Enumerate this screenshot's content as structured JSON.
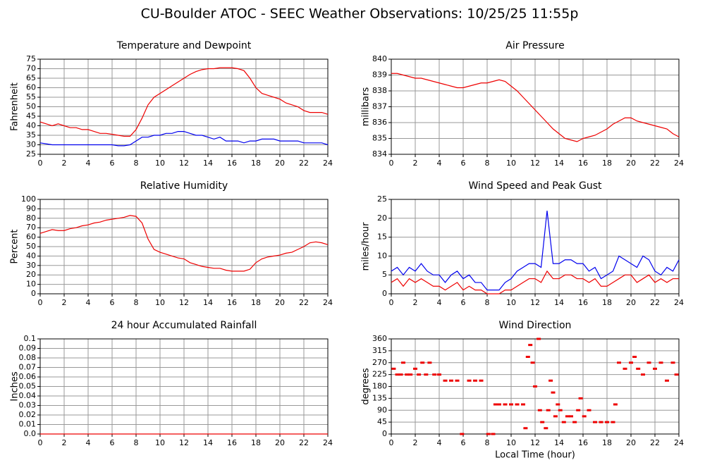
{
  "title": "CU-Boulder ATOC - SEEC Weather Observations: 10/25/25 11:55p",
  "chart_data": [
    {
      "type": "line",
      "title": "Temperature and Dewpoint",
      "ylabel": "Fahrenheit",
      "x": [
        0,
        0.5,
        1,
        1.5,
        2,
        2.5,
        3,
        3.5,
        4,
        4.5,
        5,
        5.5,
        6,
        6.5,
        7,
        7.5,
        8,
        8.5,
        9,
        9.5,
        10,
        10.5,
        11,
        11.5,
        12,
        12.5,
        13,
        13.5,
        14,
        14.5,
        15,
        15.5,
        16,
        16.5,
        17,
        17.5,
        18,
        18.5,
        19,
        19.5,
        20,
        20.5,
        21,
        21.5,
        22,
        22.5,
        23,
        23.5,
        24
      ],
      "series": [
        {
          "color": "#ee0000",
          "values": [
            42,
            41,
            40,
            41,
            40,
            39,
            39,
            38,
            38,
            37,
            36,
            36,
            35.5,
            35,
            34.5,
            34.5,
            38,
            44,
            51,
            55,
            57,
            59,
            61,
            63,
            65,
            67,
            68.5,
            69.5,
            70,
            70,
            70.5,
            70.5,
            70.5,
            70,
            69,
            65,
            60,
            57,
            56,
            55,
            54,
            52,
            51,
            50,
            48,
            47,
            47,
            47,
            46
          ]
        },
        {
          "color": "#0000ee",
          "values": [
            31,
            30.5,
            30,
            30,
            30,
            30,
            30,
            30,
            30,
            30,
            30,
            30,
            30,
            29.5,
            29.5,
            30,
            32,
            34,
            34,
            35,
            35,
            36,
            36,
            37,
            37,
            36,
            35,
            35,
            34,
            33,
            34,
            32,
            32,
            32,
            31,
            32,
            32,
            33,
            33,
            33,
            32,
            32,
            32,
            32,
            31,
            31,
            31,
            31,
            30
          ]
        }
      ],
      "xlim": [
        0,
        24
      ],
      "ylim": [
        25,
        75
      ],
      "xticks": [
        0,
        2,
        4,
        6,
        8,
        10,
        12,
        14,
        16,
        18,
        20,
        22,
        24
      ],
      "yticks": [
        25,
        30,
        35,
        40,
        45,
        50,
        55,
        60,
        65,
        70,
        75
      ],
      "grid": true
    },
    {
      "type": "line",
      "title": "Air Pressure",
      "ylabel": "millibars",
      "x": [
        0,
        0.5,
        1,
        1.5,
        2,
        2.5,
        3,
        3.5,
        4,
        4.5,
        5,
        5.5,
        6,
        6.5,
        7,
        7.5,
        8,
        8.5,
        9,
        9.5,
        10,
        10.5,
        11,
        11.5,
        12,
        12.5,
        13,
        13.5,
        14,
        14.5,
        15,
        15.5,
        16,
        16.5,
        17,
        17.5,
        18,
        18.5,
        19,
        19.5,
        20,
        20.5,
        21,
        21.5,
        22,
        22.5,
        23,
        23.5,
        24
      ],
      "series": [
        {
          "color": "#ee0000",
          "values": [
            839.1,
            839.1,
            839.0,
            838.9,
            838.8,
            838.8,
            838.7,
            838.6,
            838.5,
            838.4,
            838.3,
            838.2,
            838.2,
            838.3,
            838.4,
            838.5,
            838.5,
            838.6,
            838.7,
            838.6,
            838.3,
            838.0,
            837.6,
            837.2,
            836.8,
            836.4,
            836.0,
            835.6,
            835.3,
            835.0,
            834.9,
            834.8,
            835.0,
            835.1,
            835.2,
            835.4,
            835.6,
            835.9,
            836.1,
            836.3,
            836.3,
            836.1,
            836.0,
            835.9,
            835.8,
            835.7,
            835.6,
            835.3,
            835.1
          ]
        }
      ],
      "xlim": [
        0,
        24
      ],
      "ylim": [
        834,
        840
      ],
      "xticks": [
        0,
        2,
        4,
        6,
        8,
        10,
        12,
        14,
        16,
        18,
        20,
        22,
        24
      ],
      "yticks": [
        834,
        835,
        836,
        837,
        838,
        839,
        840
      ],
      "grid": true
    },
    {
      "type": "line",
      "title": "Relative Humidity",
      "ylabel": "Percent",
      "x": [
        0,
        0.5,
        1,
        1.5,
        2,
        2.5,
        3,
        3.5,
        4,
        4.5,
        5,
        5.5,
        6,
        6.5,
        7,
        7.5,
        8,
        8.5,
        9,
        9.5,
        10,
        10.5,
        11,
        11.5,
        12,
        12.5,
        13,
        13.5,
        14,
        14.5,
        15,
        15.5,
        16,
        16.5,
        17,
        17.5,
        18,
        18.5,
        19,
        19.5,
        20,
        20.5,
        21,
        21.5,
        22,
        22.5,
        23,
        23.5,
        24
      ],
      "series": [
        {
          "color": "#ee0000",
          "values": [
            64,
            66,
            68,
            67,
            67,
            69,
            70,
            72,
            73,
            75,
            76,
            78,
            79,
            80,
            81,
            83,
            82,
            75,
            58,
            47,
            44,
            42,
            40,
            38,
            37,
            33,
            31,
            29,
            28,
            27,
            27,
            25,
            24,
            24,
            24,
            26,
            33,
            37,
            39,
            40,
            41,
            43,
            44,
            47,
            50,
            54,
            55,
            54,
            52
          ]
        }
      ],
      "xlim": [
        0,
        24
      ],
      "ylim": [
        0,
        100
      ],
      "xticks": [
        0,
        2,
        4,
        6,
        8,
        10,
        12,
        14,
        16,
        18,
        20,
        22,
        24
      ],
      "yticks": [
        0,
        10,
        20,
        30,
        40,
        50,
        60,
        70,
        80,
        90,
        100
      ],
      "grid": true
    },
    {
      "type": "line",
      "title": "Wind Speed and Peak Gust",
      "ylabel": "miles/hour",
      "x": [
        0,
        0.5,
        1,
        1.5,
        2,
        2.5,
        3,
        3.5,
        4,
        4.5,
        5,
        5.5,
        6,
        6.5,
        7,
        7.5,
        8,
        8.5,
        9,
        9.5,
        10,
        10.5,
        11,
        11.5,
        12,
        12.5,
        13,
        13.5,
        14,
        14.5,
        15,
        15.5,
        16,
        16.5,
        17,
        17.5,
        18,
        18.5,
        19,
        19.5,
        20,
        20.5,
        21,
        21.5,
        22,
        22.5,
        23,
        23.5,
        24
      ],
      "series": [
        {
          "color": "#0000ee",
          "values": [
            6,
            7,
            5,
            7,
            6,
            8,
            6,
            5,
            5,
            3,
            5,
            6,
            4,
            5,
            3,
            3,
            1,
            1,
            1,
            3,
            4,
            6,
            7,
            8,
            8,
            7,
            22,
            8,
            8,
            9,
            9,
            8,
            8,
            6,
            7,
            4,
            5,
            6,
            10,
            9,
            8,
            7,
            10,
            9,
            6,
            5,
            7,
            6,
            9
          ]
        },
        {
          "color": "#ee0000",
          "values": [
            3,
            4,
            2,
            4,
            3,
            4,
            3,
            2,
            2,
            1,
            2,
            3,
            1,
            2,
            1,
            1,
            0,
            0,
            0,
            1,
            1,
            2,
            3,
            4,
            4,
            3,
            6,
            4,
            4,
            5,
            5,
            4,
            4,
            3,
            4,
            2,
            2,
            3,
            4,
            5,
            5,
            3,
            4,
            5,
            3,
            4,
            3,
            4,
            4
          ]
        }
      ],
      "xlim": [
        0,
        24
      ],
      "ylim": [
        0,
        25
      ],
      "xticks": [
        0,
        2,
        4,
        6,
        8,
        10,
        12,
        14,
        16,
        18,
        20,
        22,
        24
      ],
      "yticks": [
        0,
        5,
        10,
        15,
        20,
        25
      ],
      "grid": true
    },
    {
      "type": "line",
      "title": "24 hour Accumulated Rainfall",
      "ylabel": "Inches",
      "x": [
        0,
        24
      ],
      "series": [
        {
          "color": "#ee0000",
          "values": [
            0,
            0
          ]
        }
      ],
      "xlim": [
        0,
        24
      ],
      "ylim": [
        0,
        0.1
      ],
      "xticks": [
        0,
        2,
        4,
        6,
        8,
        10,
        12,
        14,
        16,
        18,
        20,
        22,
        24
      ],
      "yticks": [
        {
          "value": 0,
          "label": "0.0"
        },
        0.01,
        0.02,
        0.03,
        0.04,
        0.05,
        0.06,
        0.07,
        0.08,
        0.09,
        0.1
      ],
      "grid": true
    },
    {
      "type": "scatter",
      "title": "Wind Direction",
      "ylabel": "degrees",
      "xlabel": "Local Time (hour)",
      "x": [
        0.2,
        0.5,
        0.8,
        1.0,
        1.3,
        1.6,
        2.0,
        2.3,
        2.6,
        2.9,
        3.2,
        3.6,
        4.0,
        4.5,
        5.0,
        5.5,
        5.9,
        6.5,
        7.0,
        7.5,
        8.1,
        8.5,
        8.7,
        9.0,
        9.5,
        10.0,
        10.5,
        11.0,
        11.2,
        11.4,
        11.6,
        11.8,
        12.0,
        12.3,
        12.4,
        12.6,
        12.9,
        13.1,
        13.3,
        13.5,
        13.7,
        13.9,
        14.1,
        14.4,
        14.7,
        15.0,
        15.3,
        15.6,
        15.8,
        16.1,
        16.5,
        17.0,
        17.5,
        18.0,
        18.5,
        18.7,
        19.0,
        19.5,
        20.0,
        20.3,
        20.6,
        21.0,
        21.5,
        22.0,
        22.5,
        23.0,
        23.5,
        23.8
      ],
      "series": [
        {
          "color": "#ee0000",
          "values": [
            247,
            225,
            225,
            270,
            225,
            225,
            247,
            225,
            270,
            225,
            270,
            225,
            225,
            202,
            202,
            202,
            0,
            202,
            202,
            202,
            0,
            0,
            112,
            112,
            112,
            112,
            112,
            112,
            22,
            292,
            337,
            270,
            180,
            360,
            90,
            45,
            22,
            90,
            202,
            157,
            67,
            112,
            90,
            45,
            67,
            67,
            45,
            90,
            135,
            67,
            90,
            45,
            45,
            45,
            45,
            112,
            270,
            247,
            270,
            292,
            247,
            225,
            270,
            247,
            270,
            202,
            270,
            225
          ]
        }
      ],
      "xlim": [
        0,
        24
      ],
      "ylim": [
        0,
        360
      ],
      "xticks": [
        0,
        2,
        4,
        6,
        8,
        10,
        12,
        14,
        16,
        18,
        20,
        22,
        24
      ],
      "yticks": [
        0,
        45,
        90,
        135,
        180,
        225,
        270,
        315,
        360
      ],
      "grid": true
    }
  ]
}
